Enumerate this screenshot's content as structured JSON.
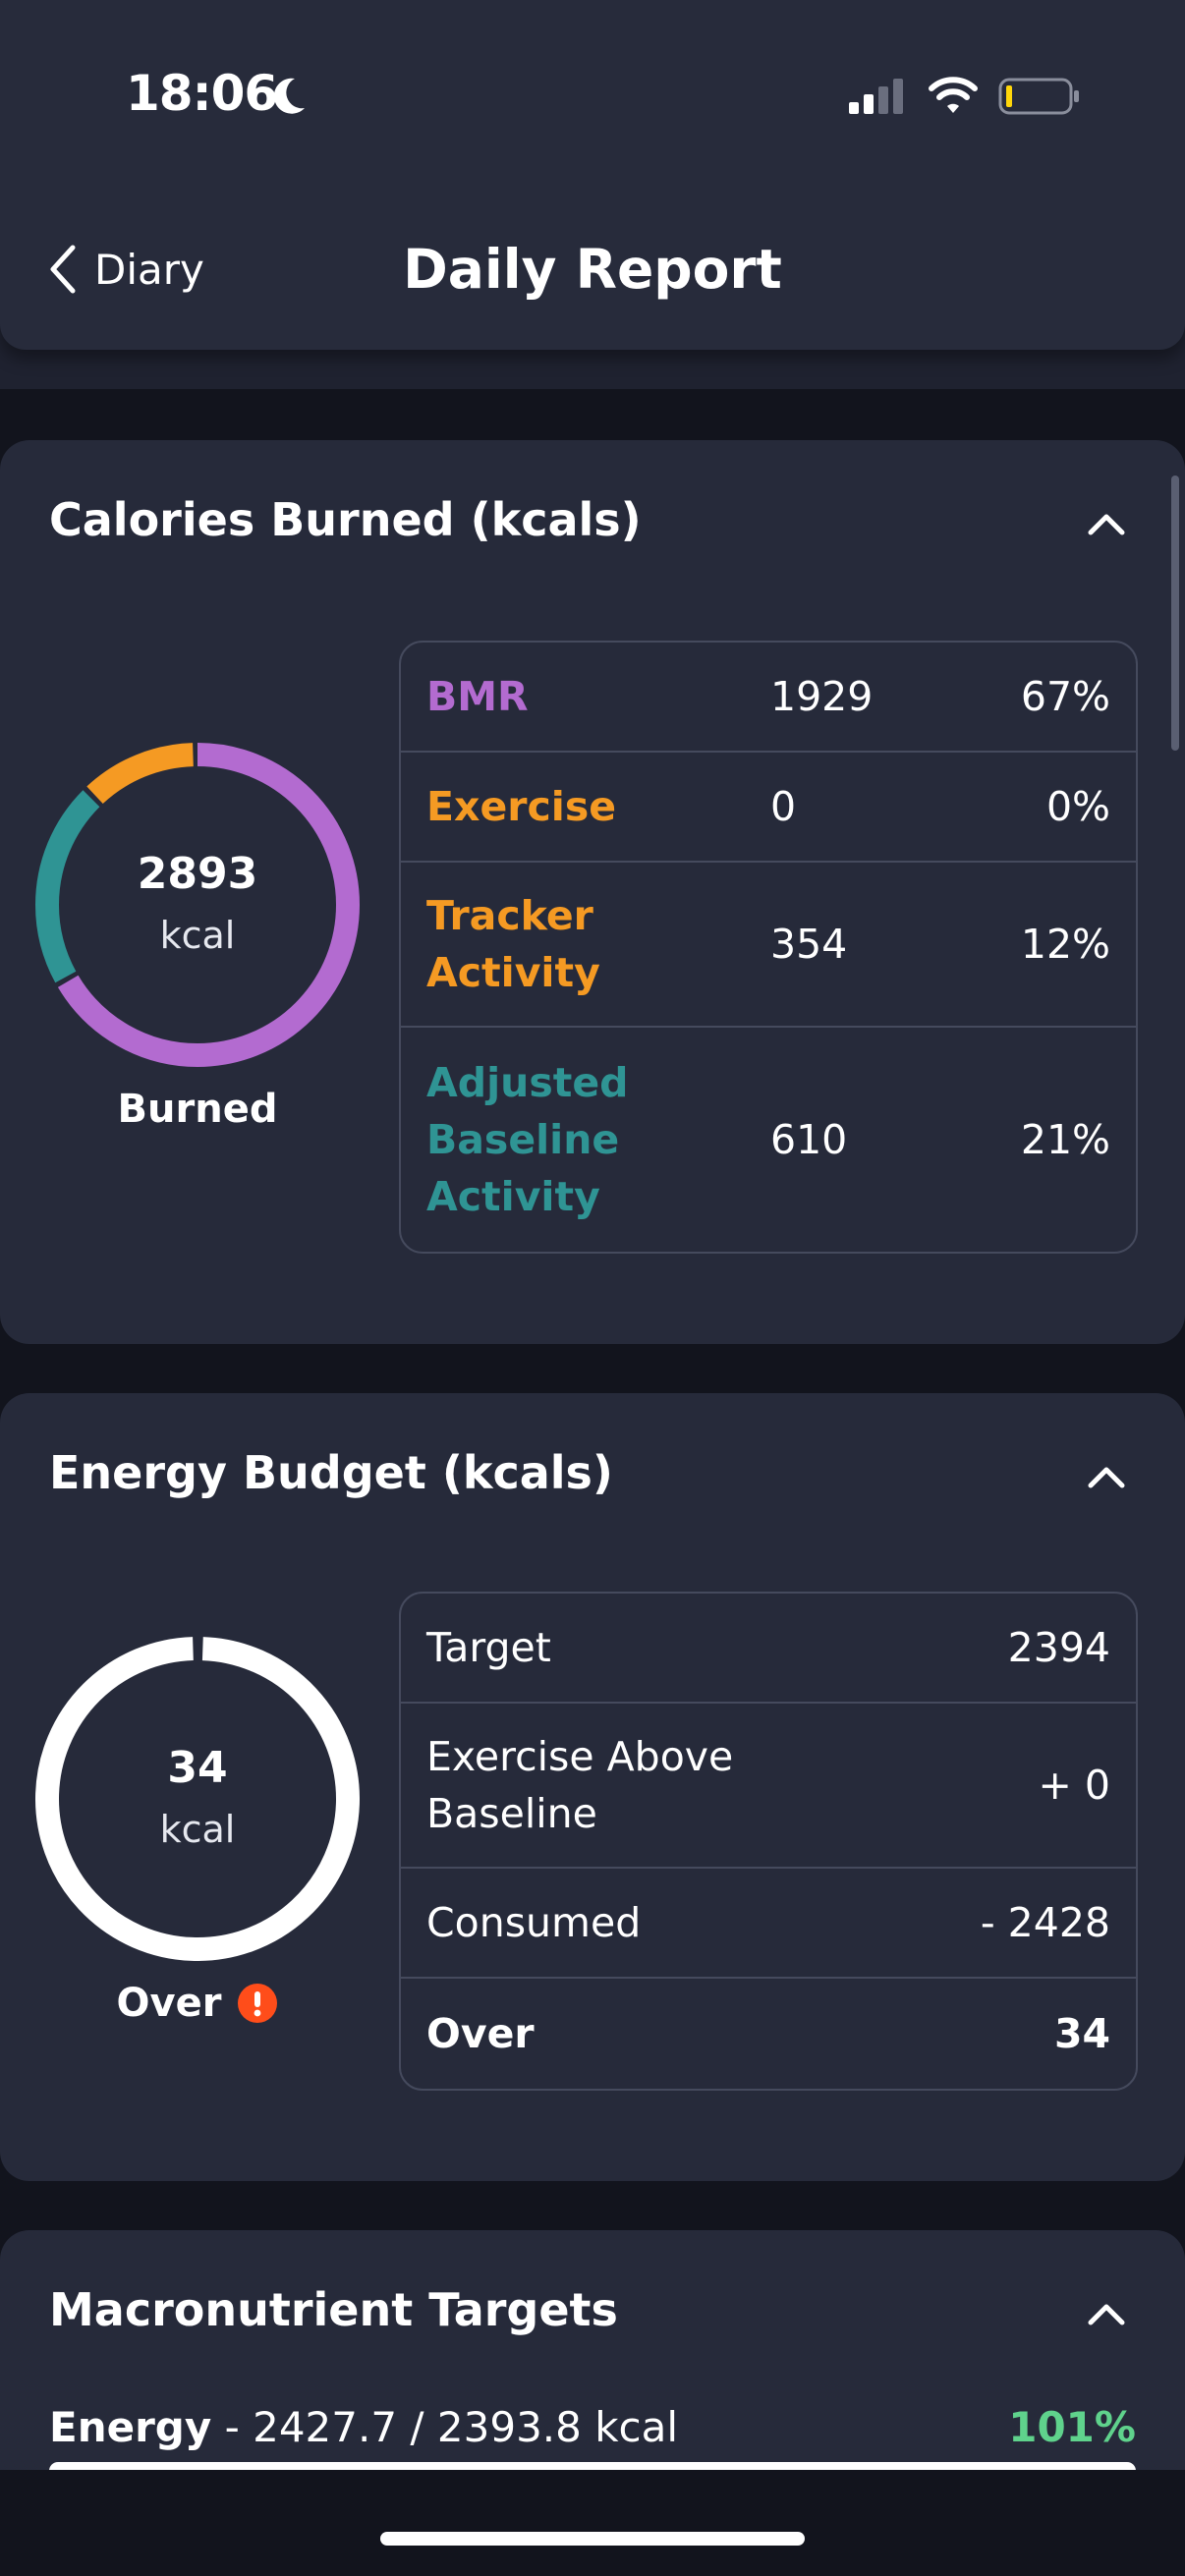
{
  "status_bar": {
    "time": "18:06"
  },
  "nav": {
    "back_label": "Diary",
    "title": "Daily Report"
  },
  "calories_burned": {
    "title": "Calories Burned (kcals)",
    "ring_value": "2893",
    "ring_unit": "kcal",
    "ring_caption": "Burned",
    "rows": [
      {
        "label": "BMR",
        "value": "1929",
        "percent": "67%",
        "color": "#b36bd0"
      },
      {
        "label": "Exercise",
        "value": "0",
        "percent": "0%",
        "color": "#f59a23"
      },
      {
        "label": "Tracker Activity",
        "value": "354",
        "percent": "12%",
        "color": "#f59a23"
      },
      {
        "label": "Adjusted Baseline Activity",
        "value": "610",
        "percent": "21%",
        "color": "#2f9494"
      }
    ],
    "ring_segments": [
      {
        "name": "BMR",
        "fraction": 0.67,
        "color": "#b36bd0"
      },
      {
        "name": "Adjusted Baseline Activity",
        "fraction": 0.21,
        "color": "#2f9494"
      },
      {
        "name": "Tracker Activity",
        "fraction": 0.12,
        "color": "#f59a23"
      }
    ]
  },
  "energy_budget": {
    "title": "Energy Budget (kcals)",
    "ring_value": "34",
    "ring_unit": "kcal",
    "ring_caption": "Over",
    "rows": [
      {
        "label": "Target",
        "value": "2394"
      },
      {
        "label": "Exercise Above Baseline",
        "value": "+ 0"
      },
      {
        "label": "Consumed",
        "value": "- 2428"
      },
      {
        "label": "Over",
        "value": "34"
      }
    ],
    "warning_color": "#ff4d1a"
  },
  "macronutrient_targets": {
    "title": "Macronutrient Targets",
    "energy_label": "Energy",
    "energy_detail": " - 2427.7 / 2393.8 kcal",
    "energy_percent": "101%",
    "percent_color": "#5fd28c"
  }
}
